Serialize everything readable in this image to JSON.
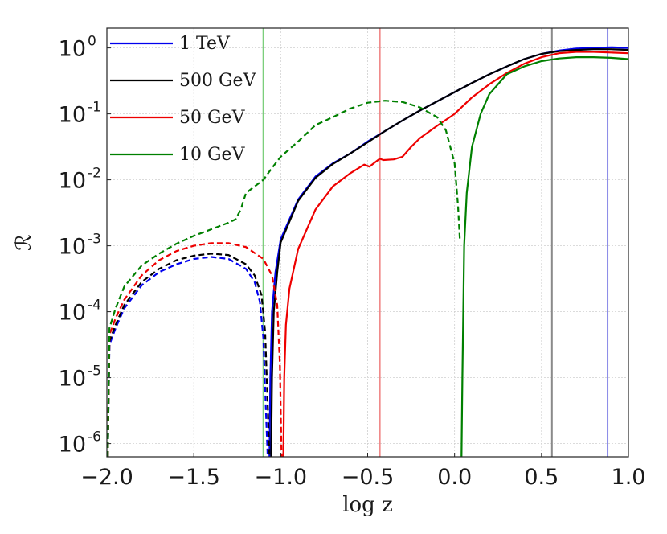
{
  "chart_data": {
    "type": "line",
    "xlabel": "log z",
    "ylabel": "ℛ",
    "xlim": [
      -2.0,
      1.0
    ],
    "ylim_log10": [
      -6.2,
      0.3
    ],
    "yscale": "log",
    "grid": true,
    "legend_position": "top-left",
    "x_ticks": [
      {
        "value": -2.0,
        "label": "−2.0"
      },
      {
        "value": -1.5,
        "label": "−1.5"
      },
      {
        "value": -1.0,
        "label": "−1.0"
      },
      {
        "value": -0.5,
        "label": "−0.5"
      },
      {
        "value": 0.0,
        "label": "0.0"
      },
      {
        "value": 0.5,
        "label": "0.5"
      },
      {
        "value": 1.0,
        "label": "1.0"
      }
    ],
    "y_ticks": [
      {
        "value": 0,
        "base": "10",
        "exp": "0"
      },
      {
        "value": -1,
        "base": "10",
        "exp": "-1"
      },
      {
        "value": -2,
        "base": "10",
        "exp": "-2"
      },
      {
        "value": -3,
        "base": "10",
        "exp": "-3"
      },
      {
        "value": -4,
        "base": "10",
        "exp": "-4"
      },
      {
        "value": -5,
        "base": "10",
        "exp": "-5"
      },
      {
        "value": -6,
        "base": "10",
        "exp": "-6"
      }
    ],
    "vertical_lines": [
      {
        "x": -1.1,
        "color": "#7ccf7c"
      },
      {
        "x": -0.43,
        "color": "#f08a8a"
      },
      {
        "x": 0.56,
        "color": "#8a8a8a"
      },
      {
        "x": 0.88,
        "color": "#8a8ae8"
      }
    ],
    "series": [
      {
        "name": "1 TeV",
        "color": "#0000ee",
        "segments": [
          {
            "style": "dashed",
            "points": [
              [
                -1.995,
                -6.2
              ],
              [
                -1.985,
                -4.5
              ],
              [
                -1.95,
                -4.25
              ],
              [
                -1.9,
                -3.95
              ],
              [
                -1.8,
                -3.6
              ],
              [
                -1.7,
                -3.4
              ],
              [
                -1.6,
                -3.28
              ],
              [
                -1.5,
                -3.2
              ],
              [
                -1.4,
                -3.17
              ],
              [
                -1.3,
                -3.2
              ],
              [
                -1.2,
                -3.35
              ],
              [
                -1.15,
                -3.55
              ],
              [
                -1.12,
                -3.85
              ],
              [
                -1.1,
                -4.4
              ],
              [
                -1.085,
                -5.5
              ],
              [
                -1.075,
                -6.2
              ]
            ]
          },
          {
            "style": "solid",
            "points": [
              [
                -1.065,
                -6.2
              ],
              [
                -1.06,
                -5.0
              ],
              [
                -1.05,
                -4.0
              ],
              [
                -1.03,
                -3.4
              ],
              [
                -1.0,
                -2.9
              ],
              [
                -0.9,
                -2.3
              ],
              [
                -0.8,
                -1.95
              ],
              [
                -0.7,
                -1.75
              ],
              [
                -0.6,
                -1.6
              ],
              [
                -0.5,
                -1.42
              ],
              [
                -0.4,
                -1.26
              ],
              [
                -0.3,
                -1.1
              ],
              [
                -0.2,
                -0.95
              ],
              [
                -0.1,
                -0.81
              ],
              [
                0.0,
                -0.67
              ],
              [
                0.1,
                -0.53
              ],
              [
                0.2,
                -0.4
              ],
              [
                0.3,
                -0.28
              ],
              [
                0.4,
                -0.17
              ],
              [
                0.5,
                -0.09
              ],
              [
                0.6,
                -0.04
              ],
              [
                0.7,
                -0.01
              ],
              [
                0.8,
                0.0
              ],
              [
                0.9,
                0.01
              ],
              [
                1.0,
                0.0
              ]
            ]
          }
        ]
      },
      {
        "name": "500 GeV",
        "color": "#000000",
        "segments": [
          {
            "style": "dashed",
            "points": [
              [
                -1.995,
                -6.2
              ],
              [
                -1.985,
                -4.45
              ],
              [
                -1.95,
                -4.2
              ],
              [
                -1.9,
                -3.9
              ],
              [
                -1.8,
                -3.55
              ],
              [
                -1.7,
                -3.35
              ],
              [
                -1.6,
                -3.22
              ],
              [
                -1.5,
                -3.15
              ],
              [
                -1.4,
                -3.12
              ],
              [
                -1.3,
                -3.14
              ],
              [
                -1.2,
                -3.28
              ],
              [
                -1.15,
                -3.45
              ],
              [
                -1.11,
                -3.75
              ],
              [
                -1.09,
                -4.3
              ],
              [
                -1.075,
                -5.4
              ],
              [
                -1.065,
                -6.2
              ]
            ]
          },
          {
            "style": "solid",
            "points": [
              [
                -1.055,
                -6.2
              ],
              [
                -1.05,
                -5.0
              ],
              [
                -1.04,
                -4.0
              ],
              [
                -1.02,
                -3.4
              ],
              [
                -1.0,
                -2.95
              ],
              [
                -0.9,
                -2.32
              ],
              [
                -0.8,
                -1.97
              ],
              [
                -0.7,
                -1.76
              ],
              [
                -0.6,
                -1.6
              ],
              [
                -0.5,
                -1.43
              ],
              [
                -0.4,
                -1.26
              ],
              [
                -0.3,
                -1.1
              ],
              [
                -0.2,
                -0.95
              ],
              [
                -0.1,
                -0.81
              ],
              [
                0.0,
                -0.67
              ],
              [
                0.1,
                -0.53
              ],
              [
                0.2,
                -0.4
              ],
              [
                0.3,
                -0.28
              ],
              [
                0.4,
                -0.17
              ],
              [
                0.5,
                -0.09
              ],
              [
                0.6,
                -0.05
              ],
              [
                0.7,
                -0.03
              ],
              [
                0.8,
                -0.02
              ],
              [
                0.9,
                -0.02
              ],
              [
                1.0,
                -0.03
              ]
            ]
          }
        ]
      },
      {
        "name": "50 GeV",
        "color": "#ee0000",
        "segments": [
          {
            "style": "dashed",
            "points": [
              [
                -1.995,
                -6.2
              ],
              [
                -1.985,
                -4.35
              ],
              [
                -1.95,
                -4.1
              ],
              [
                -1.9,
                -3.82
              ],
              [
                -1.8,
                -3.45
              ],
              [
                -1.7,
                -3.22
              ],
              [
                -1.6,
                -3.08
              ],
              [
                -1.5,
                -3.0
              ],
              [
                -1.4,
                -2.96
              ],
              [
                -1.3,
                -2.96
              ],
              [
                -1.2,
                -3.02
              ],
              [
                -1.1,
                -3.2
              ],
              [
                -1.05,
                -3.45
              ],
              [
                -1.02,
                -3.9
              ],
              [
                -1.005,
                -4.8
              ],
              [
                -0.995,
                -6.2
              ]
            ]
          },
          {
            "style": "solid",
            "points": [
              [
                -0.985,
                -6.2
              ],
              [
                -0.98,
                -5.0
              ],
              [
                -0.97,
                -4.2
              ],
              [
                -0.95,
                -3.65
              ],
              [
                -0.9,
                -3.05
              ],
              [
                -0.8,
                -2.45
              ],
              [
                -0.7,
                -2.1
              ],
              [
                -0.6,
                -1.9
              ],
              [
                -0.52,
                -1.77
              ],
              [
                -0.49,
                -1.8
              ],
              [
                -0.45,
                -1.72
              ],
              [
                -0.43,
                -1.68
              ],
              [
                -0.41,
                -1.7
              ],
              [
                -0.35,
                -1.69
              ],
              [
                -0.3,
                -1.65
              ],
              [
                -0.25,
                -1.5
              ],
              [
                -0.2,
                -1.37
              ],
              [
                -0.1,
                -1.18
              ],
              [
                0.0,
                -1.0
              ],
              [
                0.1,
                -0.75
              ],
              [
                0.2,
                -0.55
              ],
              [
                0.3,
                -0.38
              ],
              [
                0.4,
                -0.24
              ],
              [
                0.5,
                -0.14
              ],
              [
                0.6,
                -0.08
              ],
              [
                0.7,
                -0.06
              ],
              [
                0.8,
                -0.06
              ],
              [
                0.9,
                -0.07
              ],
              [
                1.0,
                -0.08
              ]
            ]
          }
        ]
      },
      {
        "name": "10 GeV",
        "color": "#008000",
        "segments": [
          {
            "style": "dashed",
            "points": [
              [
                -1.995,
                -6.2
              ],
              [
                -1.985,
                -4.25
              ],
              [
                -1.95,
                -3.95
              ],
              [
                -1.9,
                -3.62
              ],
              [
                -1.8,
                -3.3
              ],
              [
                -1.7,
                -3.12
              ],
              [
                -1.6,
                -2.97
              ],
              [
                -1.5,
                -2.85
              ],
              [
                -1.4,
                -2.75
              ],
              [
                -1.3,
                -2.65
              ],
              [
                -1.26,
                -2.6
              ],
              [
                -1.23,
                -2.45
              ],
              [
                -1.2,
                -2.2
              ],
              [
                -1.15,
                -2.1
              ],
              [
                -1.1,
                -2.0
              ],
              [
                -1.05,
                -1.82
              ],
              [
                -1.0,
                -1.65
              ],
              [
                -0.9,
                -1.42
              ],
              [
                -0.8,
                -1.17
              ],
              [
                -0.7,
                -1.05
              ],
              [
                -0.6,
                -0.92
              ],
              [
                -0.5,
                -0.83
              ],
              [
                -0.4,
                -0.8
              ],
              [
                -0.3,
                -0.82
              ],
              [
                -0.2,
                -0.9
              ],
              [
                -0.1,
                -1.05
              ],
              [
                -0.05,
                -1.25
              ],
              [
                0.0,
                -1.75
              ],
              [
                0.02,
                -2.4
              ],
              [
                0.03,
                -2.9
              ]
            ]
          },
          {
            "style": "solid",
            "points": [
              [
                0.04,
                -6.2
              ],
              [
                0.045,
                -5.0
              ],
              [
                0.055,
                -3.0
              ],
              [
                0.07,
                -2.2
              ],
              [
                0.1,
                -1.5
              ],
              [
                0.15,
                -1.0
              ],
              [
                0.2,
                -0.7
              ],
              [
                0.3,
                -0.4
              ],
              [
                0.4,
                -0.28
              ],
              [
                0.5,
                -0.2
              ],
              [
                0.6,
                -0.16
              ],
              [
                0.7,
                -0.14
              ],
              [
                0.8,
                -0.14
              ],
              [
                0.9,
                -0.15
              ],
              [
                1.0,
                -0.17
              ]
            ]
          }
        ]
      }
    ]
  }
}
